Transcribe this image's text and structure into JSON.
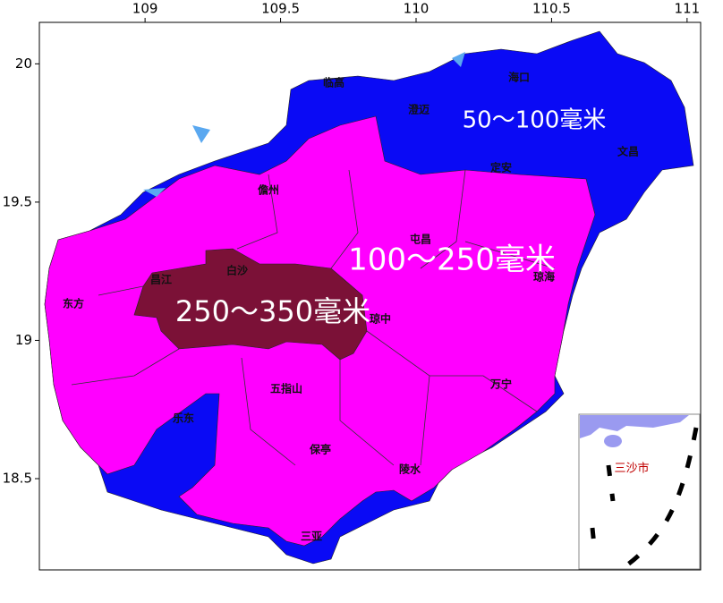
{
  "map": {
    "xlim": [
      108.61,
      111.05
    ],
    "ylim": [
      18.17,
      20.15
    ],
    "xticks": [
      109,
      109.5,
      110,
      110.5,
      111
    ],
    "yticks": [
      18.5,
      19,
      19.5,
      20
    ],
    "zones": [
      {
        "label": "50～100毫米",
        "color": "#0a0af5"
      },
      {
        "label": "100～250毫米",
        "color": "#ff00ff"
      },
      {
        "label": "250～350毫米",
        "color": "#7b1137"
      }
    ],
    "cities": [
      "海口",
      "临高",
      "澄迈",
      "定安",
      "文昌",
      "儋州",
      "屯昌",
      "白沙",
      "昌江",
      "琼海",
      "东方",
      "琼中",
      "万宁",
      "五指山",
      "乐东",
      "保亭",
      "陵水",
      "三亚"
    ],
    "inset_label": "三沙市"
  }
}
